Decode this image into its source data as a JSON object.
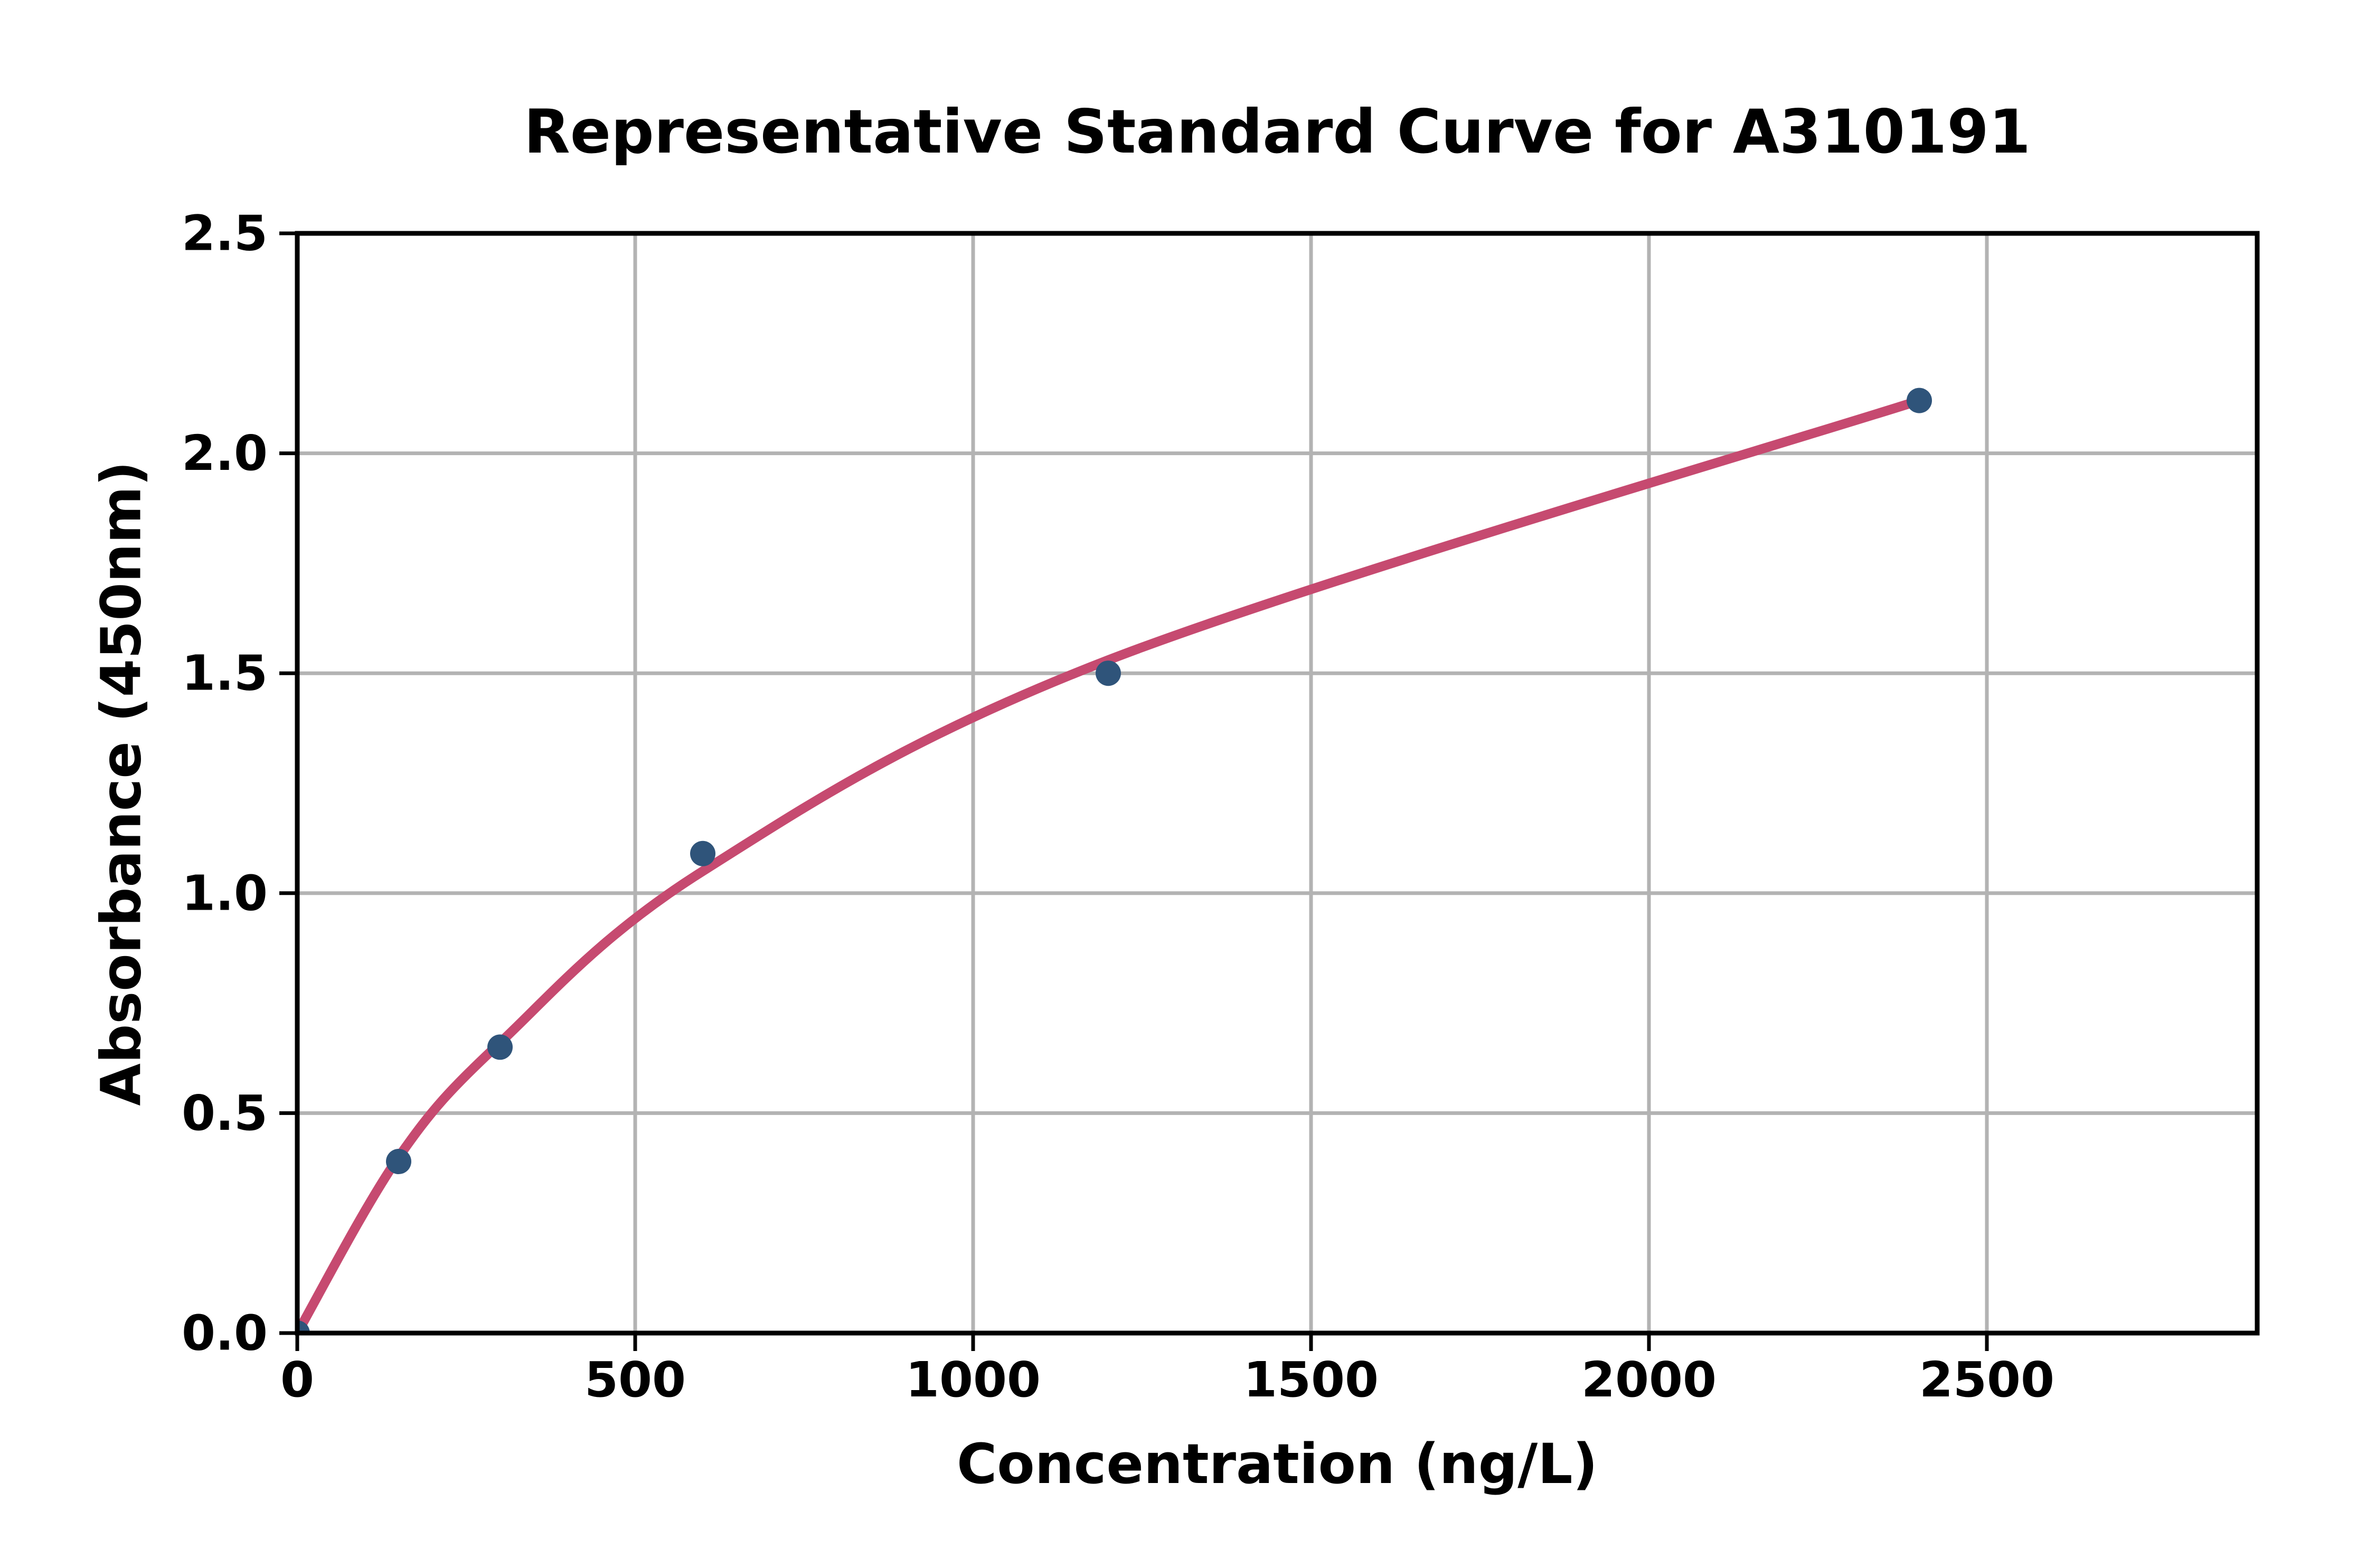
{
  "chart_data": {
    "type": "scatter",
    "title": "Representative Standard Curve for A310191",
    "xlabel": "Concentration (ng/L)",
    "ylabel": "Absorbance (450nm)",
    "xlim": [
      0,
      2900
    ],
    "ylim": [
      0,
      2.5
    ],
    "grid": true,
    "legend": "none",
    "x_ticks": [
      0,
      500,
      1000,
      1500,
      2000,
      2500
    ],
    "x_tick_labels": [
      "0",
      "500",
      "1000",
      "1500",
      "2000",
      "2500"
    ],
    "y_ticks": [
      0.0,
      0.5,
      1.0,
      1.5,
      2.0,
      2.5
    ],
    "y_tick_labels": [
      "0.0",
      "0.5",
      "1.0",
      "1.5",
      "2.0",
      "2.5"
    ],
    "x_gridlines": [
      500,
      1000,
      1500,
      2000,
      2500
    ],
    "y_gridlines": [
      0.5,
      1.0,
      1.5,
      2.0
    ],
    "points": {
      "x": [
        0,
        150,
        300,
        600,
        1200,
        2400
      ],
      "y": [
        0.0,
        0.39,
        0.65,
        1.09,
        1.5,
        2.12
      ]
    },
    "fit_curve_points": [
      [
        0,
        0.0
      ],
      [
        150,
        0.4
      ],
      [
        300,
        0.66
      ],
      [
        600,
        1.05
      ],
      [
        1200,
        1.53
      ],
      [
        2400,
        2.12
      ]
    ],
    "colors": {
      "curve": "#c64a70",
      "marker": "#2f547a",
      "grid": "#b3b3b3",
      "spine": "#000000",
      "background": "#ffffff"
    }
  }
}
